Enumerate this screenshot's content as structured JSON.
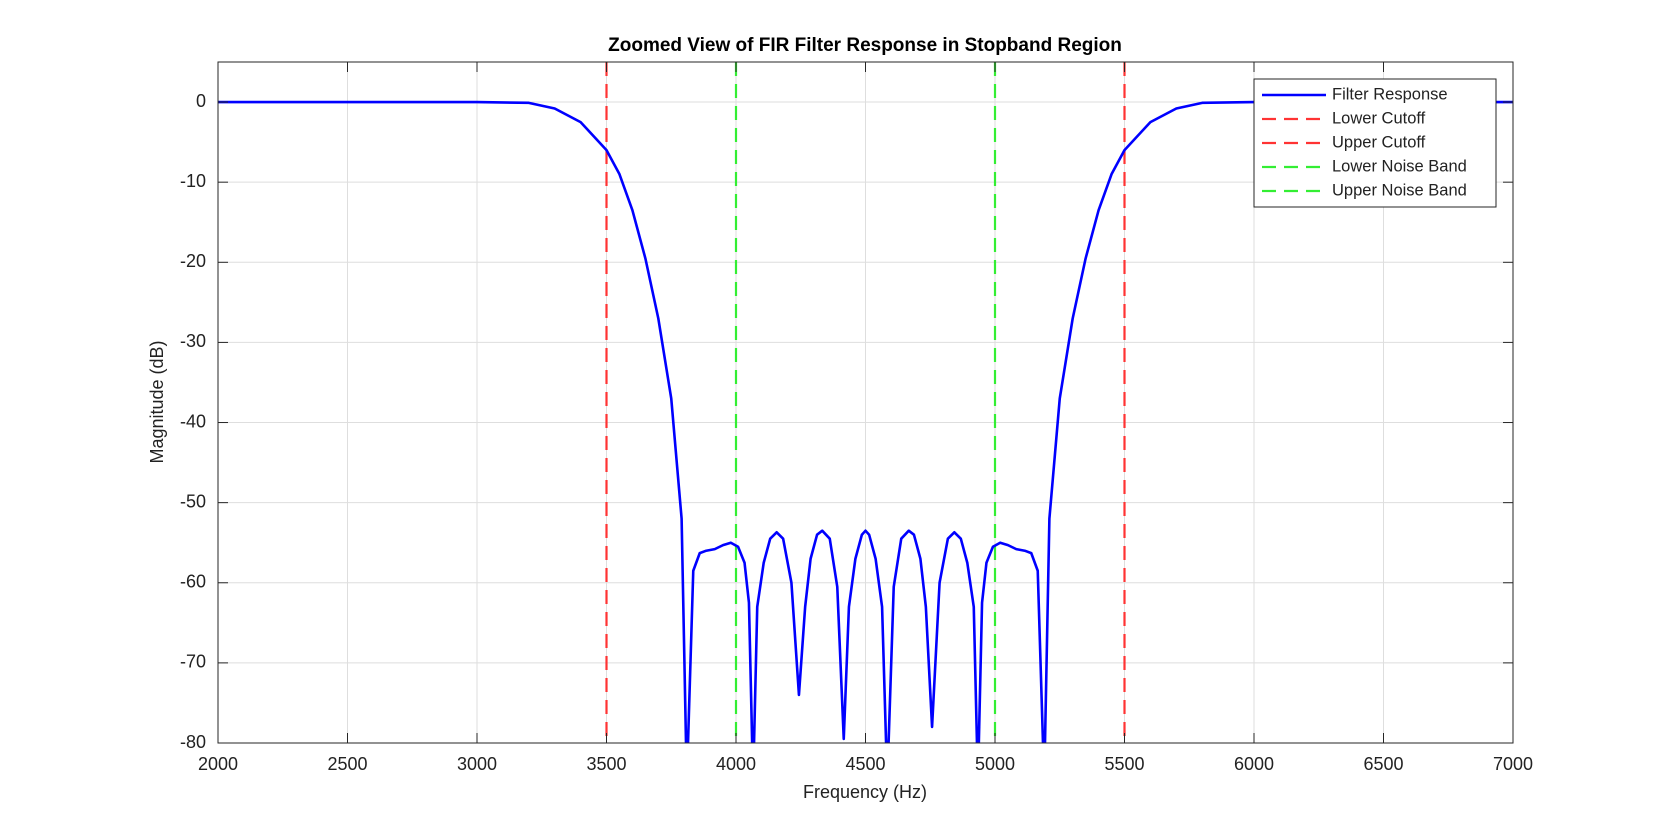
{
  "chart_data": {
    "type": "line",
    "title": "Zoomed View of FIR Filter Response in Stopband Region",
    "xlabel": "Frequency (Hz)",
    "ylabel": "Magnitude (dB)",
    "xlim": [
      2000,
      7000
    ],
    "ylim": [
      -80,
      5
    ],
    "xticks": [
      2000,
      2500,
      3000,
      3500,
      4000,
      4500,
      5000,
      5500,
      6000,
      6500,
      7000
    ],
    "yticks": [
      -80,
      -70,
      -60,
      -50,
      -40,
      -30,
      -20,
      -10,
      0
    ],
    "grid": true,
    "legend": "upper right",
    "series": [
      {
        "name": "Filter Response",
        "color": "#0000ff",
        "x": [
          2000,
          2500,
          3000,
          3200,
          3300,
          3400,
          3500,
          3550,
          3600,
          3650,
          3700,
          3750,
          3790,
          3810,
          3835,
          3860,
          3885,
          3918,
          3950,
          3980,
          4008,
          4033,
          4050,
          4066,
          4082,
          4107,
          4132,
          4157,
          4182,
          4214,
          4243,
          4267,
          4288,
          4313,
          4333,
          4362,
          4391,
          4416,
          4436,
          4461,
          4486,
          4500,
          4514,
          4539,
          4564,
          4584,
          4609,
          4638,
          4667,
          4687,
          4712,
          4733,
          4757,
          4786,
          4818,
          4843,
          4868,
          4893,
          4918,
          4934,
          4950,
          4967,
          4992,
          5020,
          5050,
          5082,
          5115,
          5140,
          5165,
          5190,
          5210,
          5250,
          5300,
          5350,
          5400,
          5450,
          5500,
          5600,
          5700,
          5800,
          6000,
          6500,
          7000
        ],
        "values": [
          0,
          0,
          0,
          -0.1,
          -0.8,
          -2.5,
          -6,
          -9,
          -13.5,
          -19.5,
          -27,
          -37,
          -52,
          -85,
          -58.5,
          -56.3,
          -56,
          -55.8,
          -55.3,
          -55,
          -55.5,
          -57.5,
          -62.5,
          -85,
          -63,
          -57.5,
          -54.5,
          -53.7,
          -54.5,
          -60,
          -74,
          -63,
          -57,
          -54,
          -53.5,
          -54.5,
          -60.5,
          -79.5,
          -63,
          -57,
          -54,
          -53.5,
          -54,
          -57,
          -63,
          -85,
          -60.5,
          -54.5,
          -53.5,
          -54,
          -57,
          -63,
          -78,
          -60,
          -54.5,
          -53.7,
          -54.5,
          -57.5,
          -63,
          -85,
          -62.5,
          -57.5,
          -55.5,
          -55,
          -55.3,
          -55.8,
          -56,
          -56.3,
          -58.5,
          -85,
          -52,
          -37,
          -27,
          -19.5,
          -13.5,
          -9,
          -6,
          -2.5,
          -0.8,
          -0.1,
          0,
          0,
          0
        ]
      }
    ],
    "vlines": [
      {
        "name": "Lower Cutoff",
        "x": 3500,
        "color": "#ff3333"
      },
      {
        "name": "Upper Cutoff",
        "x": 5500,
        "color": "#ff3333"
      },
      {
        "name": "Lower Noise Band",
        "x": 4000,
        "color": "#33ee33"
      },
      {
        "name": "Upper Noise Band",
        "x": 5000,
        "color": "#33ee33"
      }
    ]
  }
}
